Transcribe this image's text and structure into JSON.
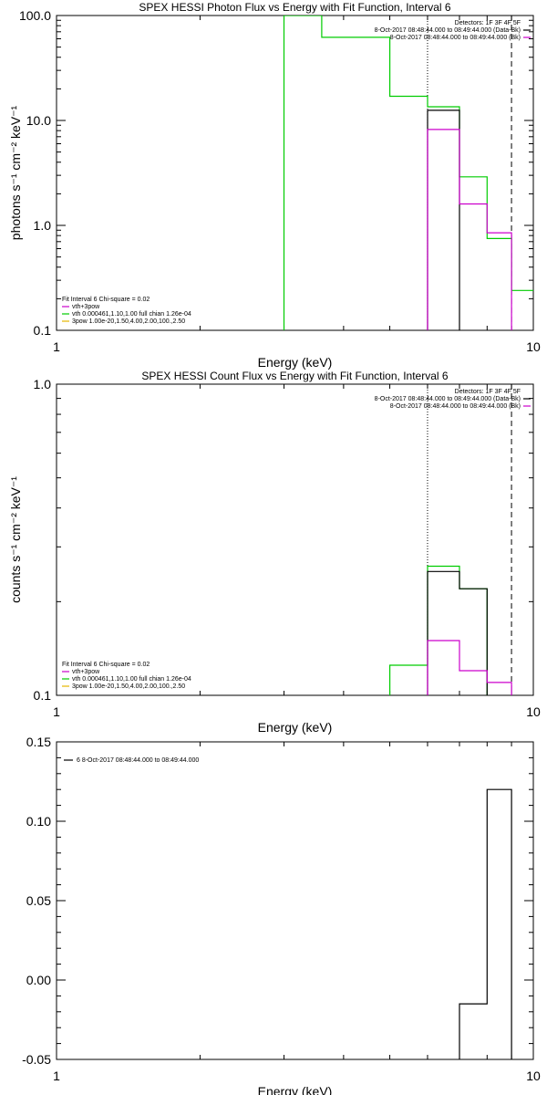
{
  "chart_data": [
    {
      "type": "line",
      "title": "SPEX HESSI Photon Flux vs Energy with Fit Function, Interval 6",
      "xlabel": "Energy (keV)",
      "ylabel": "photons s⁻¹ cm⁻² keV⁻¹",
      "x_scale": "log",
      "y_scale": "log",
      "xlim": [
        1,
        10
      ],
      "ylim": [
        0.1,
        100
      ],
      "x_ticks": [
        {
          "v": 1,
          "label": "1"
        },
        {
          "v": 10,
          "label": "10"
        }
      ],
      "y_ticks": [
        {
          "v": 0.1,
          "label": "0.1"
        },
        {
          "v": 1,
          "label": "1.0"
        },
        {
          "v": 10,
          "label": "10.0"
        },
        {
          "v": 100,
          "label": "100.0"
        }
      ],
      "top_legend": [
        {
          "text": "Detectors: 1F 3F 4F 5F",
          "color": null
        },
        {
          "text": "8-Oct-2017 08:48:44.000 to 08:49:44.000 (Data-Bk)",
          "color": "#000000"
        },
        {
          "text": "8-Oct-2017 08:48:44.000 to 08:49:44.000 (Bk)",
          "color": "#cc00cc"
        }
      ],
      "bottom_legend": [
        {
          "text": "Fit Interval 6   Chi-square = 0.02",
          "color": null
        },
        {
          "text": "vth+3pow",
          "color": "#cc00cc"
        },
        {
          "text": "vth 0.000461,1.10,1.00  full chian 1.26e-04",
          "color": "#00cc00"
        },
        {
          "text": "3pow 1.00e-20,1.50,4.00,2.00,100.,2.50",
          "color": "#e6b800"
        }
      ],
      "vlines": [
        {
          "x": 6.0,
          "style": "dotted"
        },
        {
          "x": 9.0,
          "style": "dashed"
        }
      ],
      "series": [
        {
          "color": "#00cc00",
          "x": [
            3.0,
            3.0,
            3.6,
            3.6,
            5.0,
            5.0,
            6.0,
            6.0,
            7.0,
            7.0,
            8.0,
            8.0,
            9.0,
            9.0,
            10.0
          ],
          "y": [
            0.1,
            100,
            100,
            62,
            62,
            17,
            17,
            13.5,
            13.5,
            2.9,
            2.9,
            0.75,
            0.75,
            0.24,
            0.24
          ]
        },
        {
          "color": "#000000",
          "x": [
            6.0,
            6.0,
            7.0,
            7.0
          ],
          "y": [
            0.1,
            12.5,
            12.5,
            0.1
          ]
        },
        {
          "color": "#cc00cc",
          "x": [
            6.0,
            6.0,
            7.0,
            7.0,
            8.0,
            8.0,
            9.0,
            9.0
          ],
          "y": [
            0.1,
            8.2,
            8.2,
            1.6,
            1.6,
            0.85,
            0.85,
            0.1
          ]
        }
      ]
    },
    {
      "type": "line",
      "title": "SPEX HESSI Count Flux vs Energy with Fit Function, Interval 6",
      "xlabel": "Energy (keV)",
      "ylabel": "counts s⁻¹ cm⁻² keV⁻¹",
      "x_scale": "log",
      "y_scale": "log",
      "xlim": [
        1,
        10
      ],
      "ylim": [
        0.1,
        1.0
      ],
      "x_ticks": [
        {
          "v": 1,
          "label": "1"
        },
        {
          "v": 10,
          "label": "10"
        }
      ],
      "y_ticks": [
        {
          "v": 0.1,
          "label": "0.1"
        },
        {
          "v": 1,
          "label": "1.0"
        }
      ],
      "top_legend": [
        {
          "text": "Detectors: 1F 3F 4F 5F",
          "color": null
        },
        {
          "text": "8-Oct-2017 08:48:44.000 to 08:49:44.000 (Data-Bk)",
          "color": "#000000"
        },
        {
          "text": "8-Oct-2017 08:48:44.000 to 08:49:44.000 (Bk)",
          "color": "#cc00cc"
        }
      ],
      "bottom_legend": [
        {
          "text": "Fit Interval 6   Chi-square = 0.02",
          "color": null
        },
        {
          "text": "vth+3pow",
          "color": "#cc00cc"
        },
        {
          "text": "vth 0.000461,1.10,1.00  full chian 1.26e-04",
          "color": "#00cc00"
        },
        {
          "text": "3pow 1.00e-20,1.50,4.00,2.00,100.,2.50",
          "color": "#e6b800"
        }
      ],
      "vlines": [
        {
          "x": 6.0,
          "style": "dotted"
        },
        {
          "x": 9.0,
          "style": "dashed"
        }
      ],
      "series": [
        {
          "color": "#00cc00",
          "x": [
            5.0,
            5.0,
            6.0,
            6.0,
            7.0,
            7.0,
            8.0,
            8.0
          ],
          "y": [
            0.1,
            0.125,
            0.125,
            0.26,
            0.26,
            0.22,
            0.22,
            0.1
          ]
        },
        {
          "color": "#000000",
          "x": [
            6.0,
            6.0,
            7.0,
            7.0,
            8.0,
            8.0
          ],
          "y": [
            0.1,
            0.25,
            0.25,
            0.22,
            0.22,
            0.1
          ]
        },
        {
          "color": "#cc00cc",
          "x": [
            6.0,
            6.0,
            7.0,
            7.0,
            8.0,
            8.0,
            9.0,
            9.0
          ],
          "y": [
            0.1,
            0.15,
            0.15,
            0.12,
            0.12,
            0.11,
            0.11,
            0.1
          ]
        }
      ]
    },
    {
      "type": "line",
      "title": "",
      "xlabel": "Energy (keV)",
      "ylabel": "",
      "x_scale": "log",
      "y_scale": "linear",
      "xlim": [
        1,
        10
      ],
      "ylim": [
        -0.05,
        0.15
      ],
      "x_ticks": [
        {
          "v": 1,
          "label": "1"
        },
        {
          "v": 10,
          "label": "10"
        }
      ],
      "y_ticks": [
        {
          "v": -0.05,
          "label": "-0.05"
        },
        {
          "v": 0.0,
          "label": "0.00"
        },
        {
          "v": 0.05,
          "label": "0.05"
        },
        {
          "v": 0.1,
          "label": "0.10"
        },
        {
          "v": 0.15,
          "label": "0.15"
        }
      ],
      "top_legend": [],
      "bottom_legend": [],
      "inset_legend": [
        {
          "text": "6  8-Oct-2017 08:48:44.000 to 08:49:44.000",
          "color": "#000000"
        }
      ],
      "vlines": [],
      "series": [
        {
          "color": "#000000",
          "x": [
            7.0,
            7.0,
            8.0,
            8.0,
            9.0,
            9.0
          ],
          "y": [
            -0.05,
            -0.015,
            -0.015,
            0.12,
            0.12,
            -0.05
          ]
        }
      ]
    }
  ]
}
